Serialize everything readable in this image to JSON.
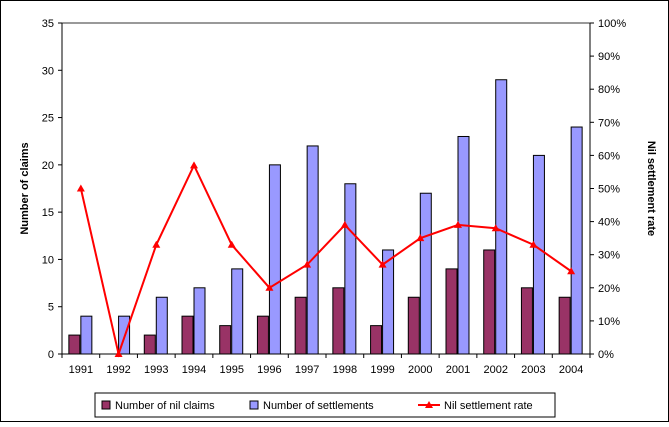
{
  "chart_data": {
    "type": "bar",
    "categories": [
      "1991",
      "1992",
      "1993",
      "1994",
      "1995",
      "1996",
      "1997",
      "1998",
      "1999",
      "2000",
      "2001",
      "2002",
      "2003",
      "2004"
    ],
    "series": [
      {
        "name": "Number of nil claims",
        "kind": "bar",
        "axis": "left",
        "color": "#993366",
        "values": [
          2,
          0,
          2,
          4,
          3,
          4,
          6,
          7,
          3,
          6,
          9,
          11,
          7,
          6
        ]
      },
      {
        "name": "Number of settlements",
        "kind": "bar",
        "axis": "left",
        "color": "#9999FF",
        "values": [
          4,
          4,
          6,
          7,
          9,
          20,
          22,
          18,
          11,
          17,
          23,
          29,
          21,
          24
        ]
      },
      {
        "name": "Nil settlement rate",
        "kind": "line",
        "axis": "right",
        "color": "#FF0000",
        "values": [
          50,
          0,
          33,
          57,
          33,
          20,
          27,
          39,
          27,
          35,
          39,
          38,
          33,
          25
        ]
      }
    ],
    "ylabel": "Number of claims",
    "y2label": "Nil settlement rate",
    "ylim": [
      0,
      35
    ],
    "yticks": [
      "0",
      "5",
      "10",
      "15",
      "20",
      "25",
      "30",
      "35"
    ],
    "y2lim": [
      0,
      100
    ],
    "y2ticks": [
      "0%",
      "10%",
      "20%",
      "30%",
      "40%",
      "50%",
      "60%",
      "70%",
      "80%",
      "90%",
      "100%"
    ],
    "grid": "top border only",
    "legend": "bottom"
  }
}
